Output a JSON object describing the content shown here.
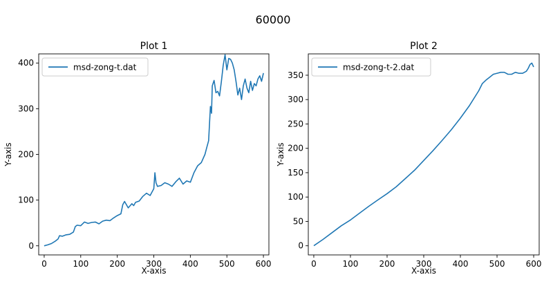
{
  "figure": {
    "suptitle": "60000"
  },
  "chart_data": [
    {
      "type": "line",
      "title": "Plot 1",
      "xlabel": "X-axis",
      "ylabel": "Y-axis",
      "xlim": [
        -15,
        615
      ],
      "ylim": [
        -20,
        420
      ],
      "xticks": [
        0,
        100,
        200,
        300,
        400,
        500,
        600
      ],
      "yticks": [
        0,
        100,
        200,
        300,
        400
      ],
      "grid": false,
      "legend": "upper-left",
      "series": [
        {
          "name": "msd-zong-t.dat",
          "color": "#1f77b4",
          "x": [
            0,
            10,
            20,
            30,
            38,
            42,
            50,
            60,
            70,
            80,
            85,
            90,
            100,
            110,
            120,
            130,
            140,
            150,
            160,
            170,
            180,
            190,
            200,
            210,
            215,
            220,
            230,
            240,
            245,
            250,
            260,
            270,
            280,
            290,
            300,
            303,
            306,
            310,
            320,
            330,
            340,
            350,
            360,
            370,
            380,
            390,
            400,
            410,
            420,
            430,
            440,
            445,
            450,
            455,
            458,
            460,
            465,
            470,
            475,
            480,
            485,
            490,
            495,
            500,
            505,
            510,
            515,
            520,
            525,
            530,
            535,
            540,
            545,
            550,
            555,
            560,
            565,
            570,
            575,
            580,
            585,
            590,
            595,
            600
          ],
          "y": [
            0,
            2,
            5,
            10,
            15,
            22,
            21,
            24,
            25,
            30,
            42,
            45,
            44,
            52,
            49,
            51,
            52,
            48,
            54,
            56,
            55,
            61,
            66,
            70,
            90,
            97,
            83,
            92,
            88,
            95,
            98,
            108,
            115,
            110,
            125,
            160,
            138,
            130,
            132,
            138,
            135,
            130,
            140,
            148,
            135,
            142,
            139,
            160,
            175,
            182,
            200,
            215,
            230,
            305,
            290,
            350,
            362,
            335,
            338,
            328,
            360,
            395,
            418,
            385,
            410,
            408,
            400,
            385,
            360,
            330,
            345,
            320,
            350,
            365,
            345,
            335,
            360,
            340,
            355,
            350,
            365,
            372,
            360,
            378
          ]
        }
      ]
    },
    {
      "type": "line",
      "title": "Plot 2",
      "xlabel": "X-axis",
      "ylabel": "Y-axis",
      "xlim": [
        -15,
        615
      ],
      "ylim": [
        -18.8,
        393.8
      ],
      "xticks": [
        0,
        100,
        200,
        300,
        400,
        500,
        600
      ],
      "yticks": [
        0,
        50,
        100,
        150,
        200,
        250,
        300,
        350
      ],
      "grid": false,
      "legend": "upper-left",
      "series": [
        {
          "name": "msd-zong-t-2.dat",
          "color": "#1f77b4",
          "x": [
            0,
            25,
            50,
            75,
            100,
            125,
            150,
            175,
            200,
            225,
            250,
            275,
            300,
            325,
            350,
            375,
            400,
            425,
            450,
            460,
            470,
            480,
            490,
            500,
            510,
            520,
            530,
            540,
            550,
            560,
            570,
            580,
            585,
            590,
            595,
            600
          ],
          "y": [
            0,
            13,
            27,
            41,
            53,
            67,
            81,
            94,
            107,
            121,
            138,
            155,
            175,
            195,
            216,
            238,
            262,
            288,
            318,
            333,
            340,
            346,
            352,
            354,
            356,
            356,
            352,
            352,
            356,
            354,
            354,
            358,
            364,
            372,
            375,
            367
          ]
        }
      ]
    }
  ]
}
